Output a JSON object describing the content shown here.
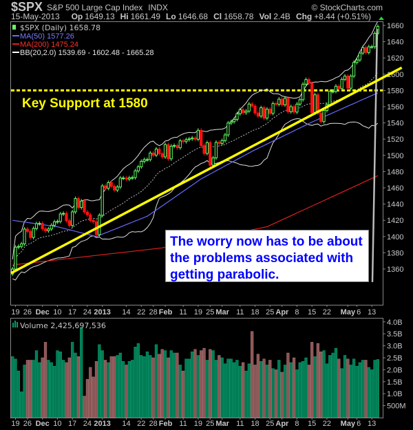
{
  "header": {
    "symbol": "$SPX",
    "name": "S&P 500 Large Cap Index",
    "exchange": "INDX",
    "copyright": "© StockCharts.com",
    "date": "15-May-2013",
    "op_label": "Op",
    "op": "1649.13",
    "hi_label": "Hi",
    "hi": "1661.49",
    "lo_label": "Lo",
    "lo": "1646.68",
    "cl_label": "Cl",
    "cl": "1658.78",
    "vol_label": "Vol",
    "vol": "2.4B",
    "chg_label": "Chg",
    "chg": "+8.44 (+0.51%)"
  },
  "legend": {
    "price": "$SPX (Daily) 1658.78",
    "ma50": "MA(50) 1577.26",
    "ma200": "MA(200) 1475.24",
    "bb": "BB(20,2.0) 1539.69 - 1602.48 - 1665.28",
    "volume": "Volume 2,425,697,536"
  },
  "annotations": {
    "support": "Key Support at 1580",
    "note": "The worry now has to be about the problems associated with getting parabolic."
  },
  "colors": {
    "up": "#66ff66",
    "down": "#ff1010",
    "ma50": "#6a6aff",
    "ma200": "#e02020",
    "bb": "#e0e0e0",
    "support": "#ffff00",
    "trend": "#ffff00",
    "vol_up": "#007d55",
    "vol_down": "#8c5656"
  },
  "chart_data": [
    {
      "type": "candlestick",
      "title": "$SPX (Daily)",
      "ylim": [
        1340,
        1665
      ],
      "yticks": [
        1360,
        1380,
        1400,
        1420,
        1440,
        1460,
        1480,
        1500,
        1520,
        1540,
        1560,
        1580,
        1600,
        1620,
        1640,
        1660
      ],
      "support_level": 1580,
      "trendline": [
        [
          0,
          1355
        ],
        [
          130,
          1608
        ]
      ],
      "close": [
        1359.9,
        1386.9,
        1387.8,
        1391.0,
        1409.2,
        1406.3,
        1398.9,
        1409.9,
        1415.9,
        1416.2,
        1409.5,
        1407.1,
        1409.3,
        1413.9,
        1418.1,
        1418.6,
        1427.8,
        1428.5,
        1419.5,
        1413.6,
        1430.4,
        1446.8,
        1435.8,
        1443.7,
        1430.2,
        1426.7,
        1419.8,
        1418.1,
        1402.4,
        1426.2,
        1462.4,
        1459.4,
        1466.5,
        1461.9,
        1457.2,
        1461.0,
        1472.1,
        1472.1,
        1470.7,
        1472.3,
        1472.6,
        1480.9,
        1485.9,
        1492.6,
        1494.8,
        1494.8,
        1502.9,
        1500.2,
        1507.8,
        1502.0,
        1498.1,
        1513.2,
        1495.7,
        1511.3,
        1512.1,
        1509.4,
        1517.9,
        1517.0,
        1519.4,
        1520.3,
        1521.4,
        1519.8,
        1530.9,
        1512.0,
        1502.4,
        1515.6,
        1487.9,
        1496.9,
        1516.0,
        1514.7,
        1518.2,
        1525.2,
        1539.8,
        1541.5,
        1544.3,
        1551.2,
        1556.2,
        1552.5,
        1554.5,
        1563.2,
        1560.7,
        1552.1,
        1548.3,
        1558.7,
        1545.8,
        1556.9,
        1551.7,
        1563.8,
        1562.9,
        1569.2,
        1562.2,
        1570.3,
        1553.7,
        1560.0,
        1553.3,
        1563.1,
        1568.6,
        1587.7,
        1593.4,
        1588.9,
        1552.4,
        1574.6,
        1552.0,
        1541.6,
        1555.3,
        1562.5,
        1578.8,
        1578.8,
        1585.2,
        1582.2,
        1593.6,
        1597.6,
        1582.7,
        1597.6,
        1614.4,
        1617.5,
        1626.0,
        1632.7,
        1626.7,
        1633.7,
        1633.8,
        1650.3,
        1658.8
      ],
      "ma50_keypoints": [
        [
          0,
          1420
        ],
        [
          15,
          1412
        ],
        [
          28,
          1400
        ],
        [
          45,
          1425
        ],
        [
          63,
          1471
        ],
        [
          80,
          1505
        ],
        [
          100,
          1541
        ],
        [
          122,
          1577
        ]
      ],
      "ma200_keypoints": [
        [
          0,
          1365
        ],
        [
          50,
          1386
        ],
        [
          85,
          1412
        ],
        [
          122,
          1475
        ]
      ],
      "xticks": [
        {
          "i": 1,
          "label": "19"
        },
        {
          "i": 5,
          "label": "26"
        },
        {
          "i": 10,
          "label": "Dec",
          "bold": true
        },
        {
          "i": 15,
          "label": "10"
        },
        {
          "i": 20,
          "label": "17"
        },
        {
          "i": 25,
          "label": "24"
        },
        {
          "i": 30,
          "label": "2013",
          "bold": true
        },
        {
          "i": 38,
          "label": "14"
        },
        {
          "i": 43,
          "label": "22"
        },
        {
          "i": 47,
          "label": "28"
        },
        {
          "i": 51,
          "label": "Feb",
          "bold": true
        },
        {
          "i": 57,
          "label": "11"
        },
        {
          "i": 62,
          "label": "19"
        },
        {
          "i": 66,
          "label": "25"
        },
        {
          "i": 70,
          "label": "Mar",
          "bold": true
        },
        {
          "i": 76,
          "label": "11"
        },
        {
          "i": 81,
          "label": "18"
        },
        {
          "i": 86,
          "label": "25"
        },
        {
          "i": 90,
          "label": "Apr",
          "bold": true
        },
        {
          "i": 95,
          "label": "8"
        },
        {
          "i": 100,
          "label": "15"
        },
        {
          "i": 105,
          "label": "22"
        },
        {
          "i": 112,
          "label": "May",
          "bold": true
        },
        {
          "i": 115,
          "label": "6"
        },
        {
          "i": 120,
          "label": "13"
        }
      ]
    },
    {
      "type": "bar",
      "title": "Volume",
      "ylim": [
        0,
        4.0
      ],
      "yunit": "B",
      "yticks": [
        {
          "v": 0.5,
          "label": "500M"
        },
        {
          "v": 1.0,
          "label": "1.0B"
        },
        {
          "v": 1.5,
          "label": "1.5B"
        },
        {
          "v": 2.0,
          "label": "2.0B"
        },
        {
          "v": 2.5,
          "label": "2.5B"
        },
        {
          "v": 3.0,
          "label": "3.0B"
        },
        {
          "v": 3.5,
          "label": "3.5B"
        },
        {
          "v": 4.0,
          "label": "4.0B"
        }
      ],
      "values": [
        2.55,
        2.45,
        1.95,
        1.08,
        2.2,
        2.4,
        2.4,
        2.4,
        2.8,
        2.3,
        2.5,
        3.15,
        2.4,
        2.3,
        2.15,
        2.8,
        2.75,
        2.4,
        2.3,
        2.5,
        3.15,
        2.7,
        2.55,
        3.75,
        0.9,
        1.6,
        2.1,
        1.7,
        2.35,
        3.05,
        2.8,
        2.4,
        2.3,
        2.55,
        2.55,
        2.6,
        2.7,
        2.35,
        2.2,
        2.35,
        2.4,
        2.95,
        3.1,
        2.6,
        2.55,
        2.75,
        2.6,
        2.5,
        3.05,
        2.65,
        2.85,
        2.8,
        2.5,
        2.8,
        2.7,
        2.7,
        2.2,
        1.95,
        2.45,
        2.45,
        2.75,
        2.85,
        2.6,
        2.8,
        2.9,
        2.4,
        2.85,
        2.8,
        2.4,
        2.6,
        2.5,
        2.25,
        2.45,
        2.45,
        2.3,
        2.4,
        2.15,
        2.3,
        1.95,
        2.25,
        3.6,
        2.2,
        2.65,
        2.35,
        2.45,
        2.2,
        2.4,
        2.05,
        2.0,
        2.4,
        1.9,
        2.2,
        2.7,
        2.3,
        2.5,
        2.0,
        2.3,
        2.35,
        2.5,
        2.2,
        3.15,
        2.55,
        3.1,
        2.75,
        2.8,
        2.25,
        2.6,
        2.7,
        2.9,
        2.45,
        2.05,
        2.6,
        2.45,
        2.2,
        2.45,
        2.15,
        2.3,
        2.4,
        2.4,
        2.1,
        2.0,
        2.4,
        2.43
      ]
    }
  ]
}
